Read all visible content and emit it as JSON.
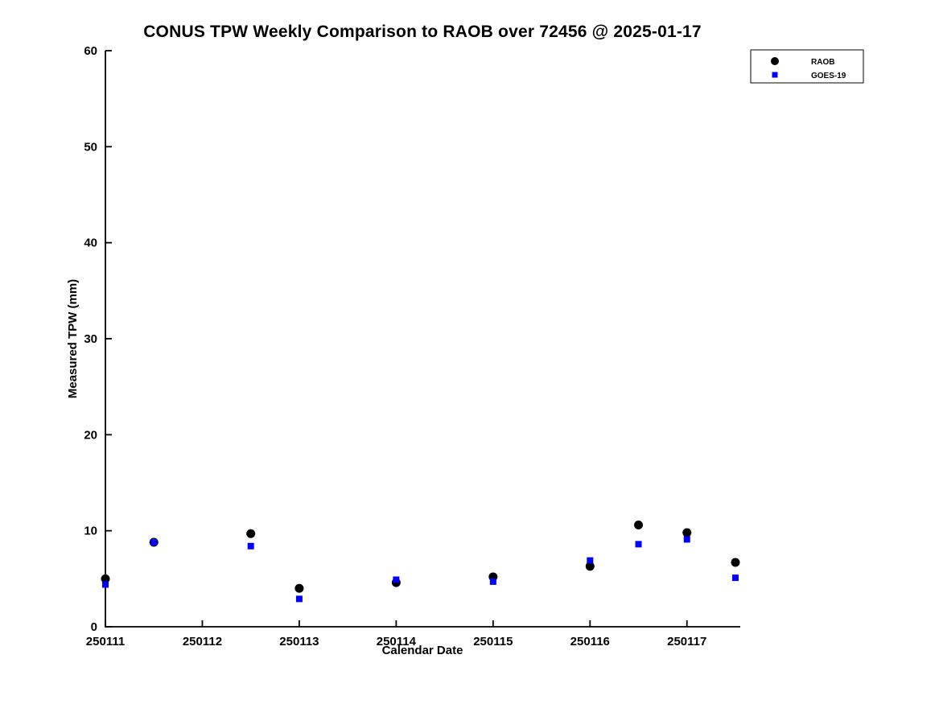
{
  "figure": {
    "background": "#ffffff"
  },
  "chart_data": {
    "type": "scatter",
    "title": "CONUS TPW Weekly Comparison to RAOB over 72456 @ 2025-01-17",
    "xlabel": "Calendar Date",
    "ylabel": "Measured TPW (mm)",
    "xlim": [
      250111,
      250117.55
    ],
    "ylim": [
      0,
      60
    ],
    "xticks": [
      250111,
      250112,
      250113,
      250114,
      250115,
      250116,
      250117
    ],
    "yticks": [
      0,
      10,
      20,
      30,
      40,
      50,
      60
    ],
    "grid": false,
    "legend": {
      "position": "top-right",
      "entries": [
        "RAOB",
        "GOES-19"
      ]
    },
    "series": [
      {
        "name": "RAOB",
        "marker": "circle",
        "color": "#000000",
        "points": [
          [
            250111.0,
            5.0
          ],
          [
            250111.5,
            8.8
          ],
          [
            250112.5,
            9.7
          ],
          [
            250113.0,
            4.0
          ],
          [
            250114.0,
            4.6
          ],
          [
            250115.0,
            5.2
          ],
          [
            250116.0,
            6.3
          ],
          [
            250116.5,
            10.6
          ],
          [
            250117.0,
            9.8
          ],
          [
            250117.5,
            6.7
          ]
        ]
      },
      {
        "name": "GOES-19",
        "marker": "square",
        "color": "#0000ff",
        "points": [
          [
            250111.0,
            4.4
          ],
          [
            250111.5,
            8.8
          ],
          [
            250112.5,
            8.4
          ],
          [
            250113.0,
            2.9
          ],
          [
            250114.0,
            4.9
          ],
          [
            250115.0,
            4.7
          ],
          [
            250116.0,
            6.9
          ],
          [
            250116.5,
            8.6
          ],
          [
            250117.0,
            9.1
          ],
          [
            250117.5,
            5.1
          ]
        ]
      }
    ]
  }
}
